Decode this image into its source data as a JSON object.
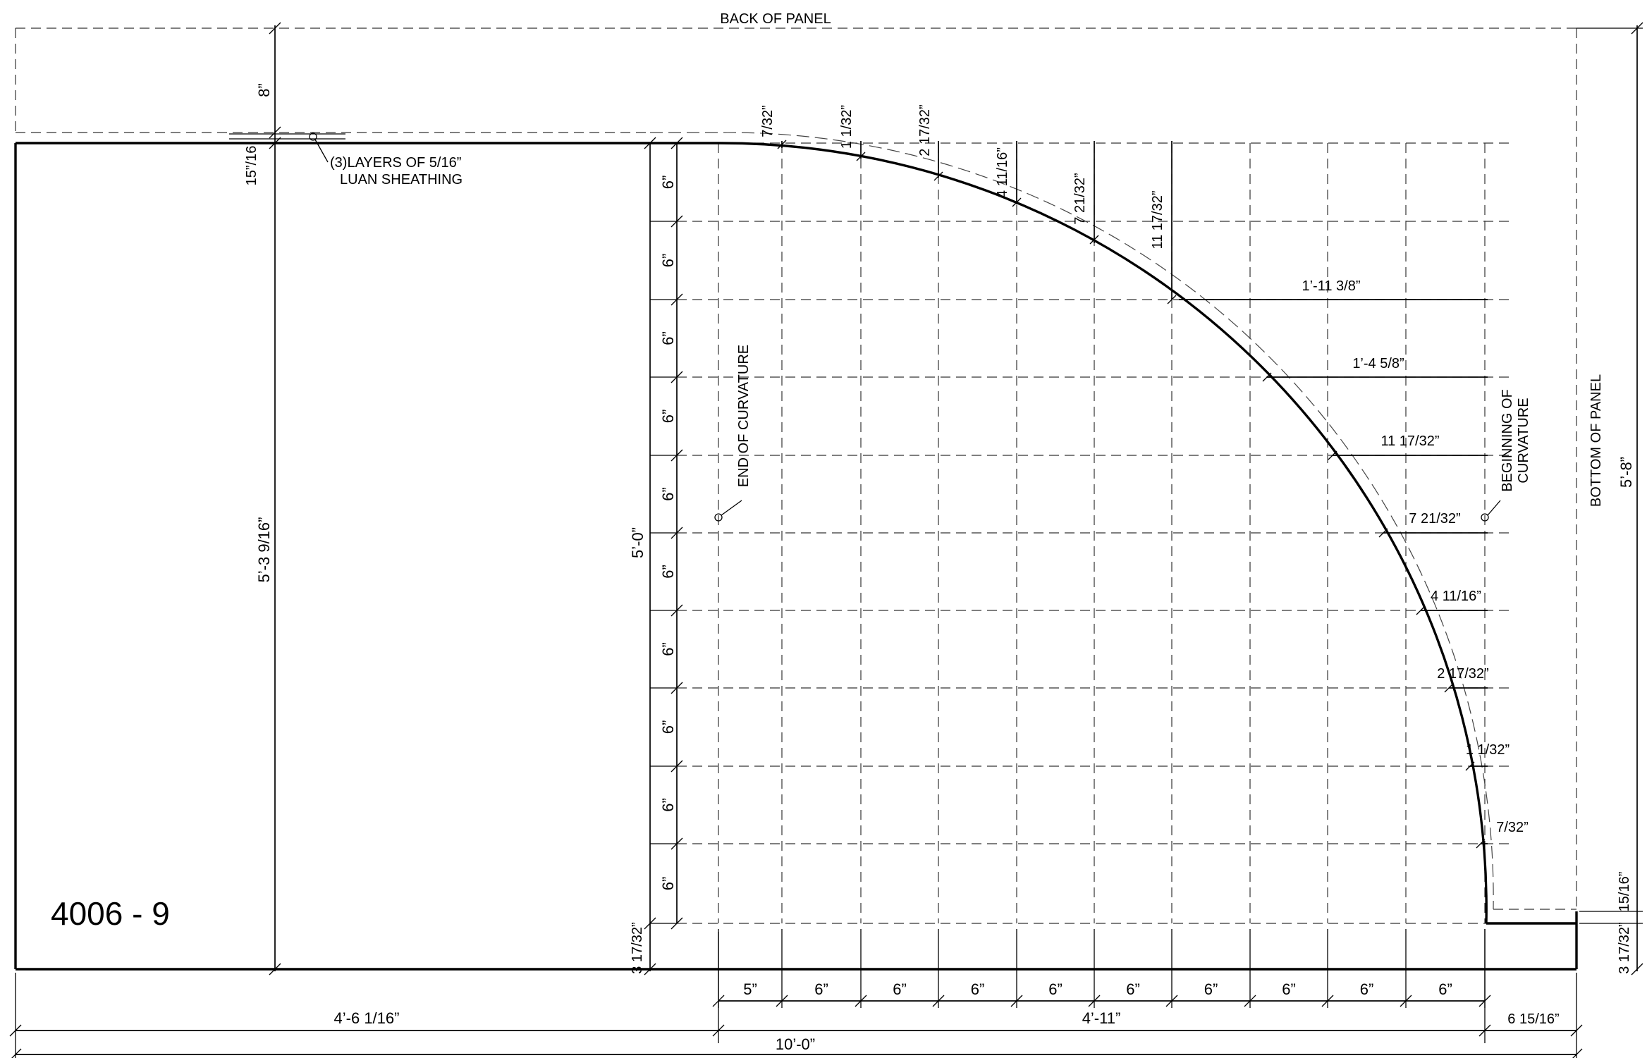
{
  "drawing_id": "4006 - 9",
  "labels": {
    "back_of_panel": "BACK OF PANEL",
    "bottom_of_panel": "BOTTOM OF PANEL",
    "sheathing_line1": "(3)LAYERS OF 5/16”",
    "sheathing_line2": "LUAN SHEATHING",
    "end_curv_line1": "END OF CURVATURE",
    "begin_curv_line1": "BEGINNING OF",
    "begin_curv_line2": "CURVATURE"
  },
  "dimensions": {
    "top_gap": "8”",
    "sheath_thick": "15”/16",
    "left_height": "5’-3 9/16”",
    "frame_height": "5’-0”",
    "total_height": "5’-8”",
    "bottom_gap": "3 17/32”",
    "right_sheath": "15/16”",
    "right_gap": "3 17/32”",
    "row_spacing": "6”",
    "col_first": "5”",
    "col_spacing": "6”",
    "left_width": "4’-6 1/16”",
    "curve_width": "4’-11”",
    "right_width": "6 15/16”",
    "overall_width": "10’-0”",
    "offsets_top": [
      "7/32”",
      "1 1/32”",
      "2 17/32”",
      "4 11/16”",
      "7 21/32”",
      "11 17/32”"
    ],
    "offsets_right": [
      "1’-11 3/8”",
      "1’-4 5/8”",
      "11 17/32”",
      "7 21/32”",
      "4 11/16”",
      "2 17/32”",
      "1 1/32”",
      "7/32”"
    ]
  }
}
